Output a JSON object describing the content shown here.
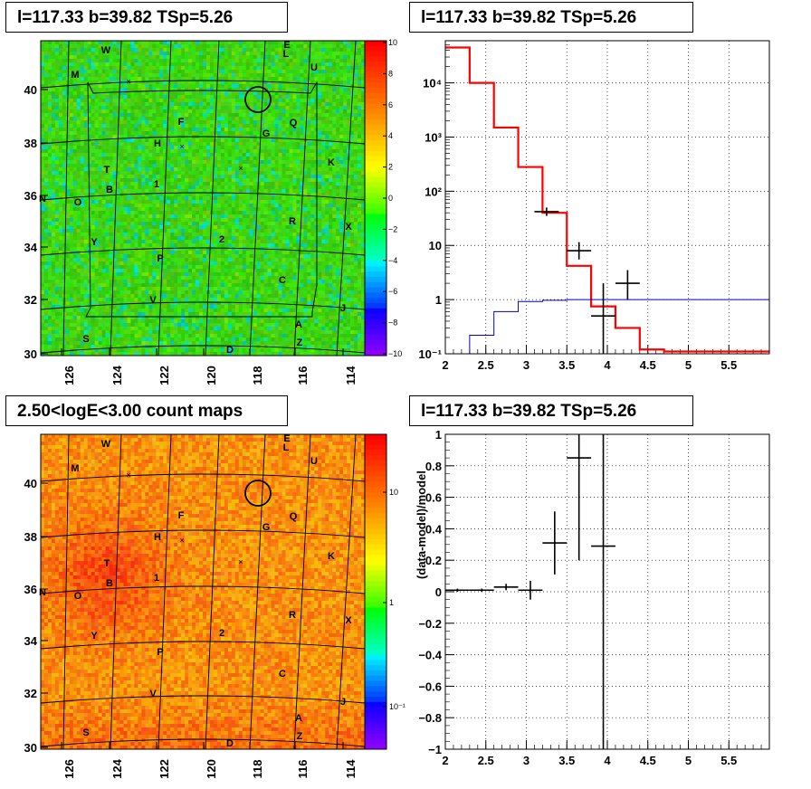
{
  "panels": {
    "tl_title": "l=117.33 b=39.82 TSp=5.26",
    "tr_title": "l=117.33 b=39.82 TSp=5.26",
    "bl_title": "2.50<logE<3.00 count maps",
    "br_title": "l=117.33 b=39.82 TSp=5.26"
  },
  "colors": {
    "model": "#ff0000",
    "data": "#000000",
    "background": "#0000cc"
  },
  "chart_data": [
    {
      "type": "heatmap",
      "panel": "residual-map",
      "title": "l=117.33 b=39.82 TSp=5.26",
      "x_ticks": [
        "126",
        "124",
        "122",
        "120",
        "118",
        "116",
        "114"
      ],
      "y_ticks": [
        "30",
        "32",
        "34",
        "36",
        "38",
        "40"
      ],
      "colorbar_ticks": [
        "10",
        "8",
        "6",
        "4",
        "2",
        "0",
        "−2",
        "−4",
        "−6",
        "−8",
        "−10"
      ],
      "zlim": [
        -10,
        10
      ],
      "source_labels": [
        "W",
        "E",
        "L",
        "U",
        "M",
        "F",
        "Q",
        "G",
        "H",
        "K",
        "T",
        "B",
        "1",
        "N",
        "O",
        "R",
        "X",
        "2",
        "Y",
        "P",
        "C",
        "V",
        "J",
        "A",
        "S",
        "Z",
        "D"
      ]
    },
    {
      "type": "line",
      "panel": "spectrum",
      "title": "l=117.33 b=39.82 TSp=5.26",
      "xlim": [
        2,
        6
      ],
      "ylim": [
        0.1,
        60000
      ],
      "ylog": true,
      "grid": true,
      "x_ticks": [
        "2",
        "2.5",
        "3",
        "3.5",
        "4",
        "4.5",
        "5",
        "5.5"
      ],
      "y_ticks": [
        "10⁻¹",
        "1",
        "10",
        "10²",
        "10³",
        "10⁴"
      ],
      "series": [
        {
          "edges": [
            2.0,
            2.3,
            2.6,
            2.9,
            3.2,
            3.5,
            3.8,
            4.1,
            4.4,
            4.7,
            5.0,
            6.0
          ],
          "values": [
            45000,
            10000,
            1500,
            280,
            40,
            4.2,
            0.75,
            0.3,
            0.12,
            0.11,
            0.11
          ]
        },
        {
          "edges": [
            2.3,
            2.6,
            2.9,
            3.2,
            3.5,
            3.8,
            4.1,
            6.0
          ],
          "values": [
            0.22,
            0.6,
            0.92,
            0.97,
            1.0,
            1.0,
            1.0
          ]
        },
        {
          "x": [
            3.25,
            3.65,
            3.95,
            4.25
          ],
          "y": [
            42,
            8,
            0.5,
            2
          ],
          "xerr": 0.15,
          "ylo": [
            35,
            5.5,
            0.1,
            1.0
          ],
          "yhi": [
            50,
            11.5,
            2.0,
            3.5
          ]
        }
      ]
    },
    {
      "type": "heatmap",
      "panel": "count-map",
      "title": "2.50<logE<3.00 count maps",
      "x_ticks": [
        "126",
        "124",
        "122",
        "120",
        "118",
        "116",
        "114"
      ],
      "y_ticks": [
        "30",
        "32",
        "34",
        "36",
        "38",
        "40"
      ],
      "colorbar_ticks": [
        "10",
        "1",
        "10⁻¹"
      ],
      "zlog": true
    },
    {
      "type": "scatter",
      "panel": "data-model-ratio",
      "title": "l=117.33 b=39.82 TSp=5.26",
      "ylabel": "(data-model)/model",
      "xlim": [
        2,
        6
      ],
      "ylim": [
        -1,
        1
      ],
      "grid": true,
      "x_ticks": [
        "2",
        "2.5",
        "3",
        "3.5",
        "4",
        "4.5",
        "5",
        "5.5"
      ],
      "y_ticks": [
        "1",
        "0.8",
        "0.6",
        "0.4",
        "0.2",
        "0",
        "−0.2",
        "−0.4",
        "−0.6",
        "−0.8",
        "−1"
      ],
      "points": [
        {
          "x": 2.15,
          "y": 0.01,
          "xerr": 0.15,
          "ylo": 0.0,
          "yhi": 0.02
        },
        {
          "x": 2.45,
          "y": 0.01,
          "xerr": 0.15,
          "ylo": 0.0,
          "yhi": 0.02
        },
        {
          "x": 2.75,
          "y": 0.03,
          "xerr": 0.15,
          "ylo": 0.01,
          "yhi": 0.05
        },
        {
          "x": 3.05,
          "y": 0.01,
          "xerr": 0.15,
          "ylo": -0.05,
          "yhi": 0.07
        },
        {
          "x": 3.35,
          "y": 0.31,
          "xerr": 0.15,
          "ylo": 0.11,
          "yhi": 0.51
        },
        {
          "x": 3.65,
          "y": 0.85,
          "xerr": 0.15,
          "ylo": 0.2,
          "yhi": 1.0
        },
        {
          "x": 3.95,
          "y": 0.29,
          "xerr": 0.15,
          "ylo": -1.0,
          "yhi": 1.0
        }
      ]
    }
  ]
}
